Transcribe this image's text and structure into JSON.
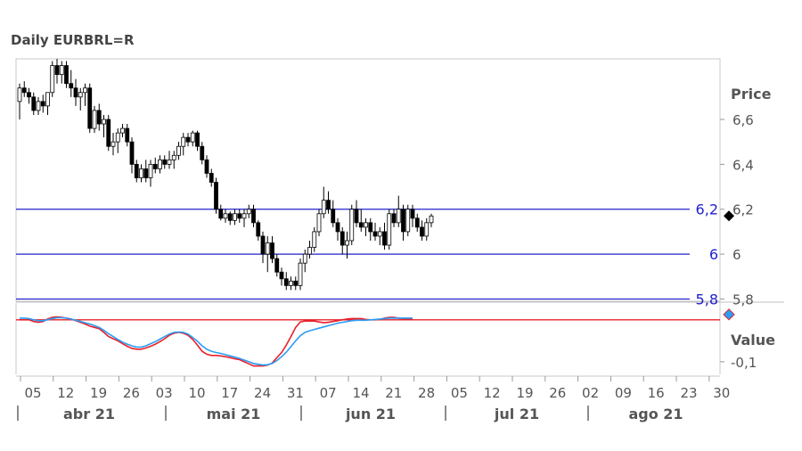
{
  "chart_data": {
    "title": "Daily EURBRL=R",
    "type": "candlestick",
    "price_panel": {
      "ylabel": "Price",
      "ylim": [
        5.79,
        6.87
      ],
      "yticks": [
        5.8,
        6.0,
        6.2,
        6.4,
        6.6
      ],
      "ytick_labels": [
        "5,8",
        "6",
        "6,2",
        "6,4",
        "6,6"
      ],
      "horizontal_lines": [
        {
          "value": 6.2,
          "label": "6,2",
          "color": "#2222cc"
        },
        {
          "value": 6.0,
          "label": "6",
          "color": "#2222cc"
        },
        {
          "value": 5.8,
          "label": "5,8",
          "color": "#2222cc"
        }
      ],
      "last_value_marker": 6.17
    },
    "indicator_panel": {
      "ylabel": "Value",
      "ytick_labels": [
        "-0,1"
      ],
      "ylim": [
        -0.13,
        0.04
      ],
      "yticks": [
        -0.1
      ],
      "zero_line": {
        "value": 0.0,
        "color": "#e8202a"
      },
      "series": [
        {
          "color": "#e8202a",
          "values": [
            0.0,
            0.0,
            0.0,
            -0.004,
            -0.006,
            -0.004,
            0.002,
            0.006,
            0.007,
            0.006,
            0.004,
            0.002,
            -0.002,
            -0.006,
            -0.01,
            -0.015,
            -0.018,
            -0.021,
            -0.03,
            -0.04,
            -0.045,
            -0.05,
            -0.057,
            -0.063,
            -0.068,
            -0.07,
            -0.07,
            -0.067,
            -0.063,
            -0.058,
            -0.052,
            -0.045,
            -0.037,
            -0.032,
            -0.03,
            -0.032,
            -0.037,
            -0.047,
            -0.06,
            -0.075,
            -0.082,
            -0.085,
            -0.085,
            -0.086,
            -0.088,
            -0.09,
            -0.093,
            -0.095,
            -0.1,
            -0.105,
            -0.11,
            -0.11,
            -0.11,
            -0.108,
            -0.103,
            -0.09,
            -0.078,
            -0.06,
            -0.04,
            -0.018,
            -0.005,
            -0.003,
            -0.003,
            -0.003,
            -0.005,
            -0.007,
            -0.006,
            -0.004,
            -0.002,
            0.0,
            0.002,
            0.003,
            0.003,
            0.003,
            0.001,
            0.0,
            0.0,
            0.001,
            0.004,
            0.006,
            0.006,
            0.004,
            0.002,
            0.002,
            0.003
          ]
        },
        {
          "color": "#2a9df4",
          "values": [
            0.004,
            0.004,
            0.003,
            0.0,
            -0.002,
            -0.002,
            0.0,
            0.003,
            0.005,
            0.005,
            0.004,
            0.002,
            -0.001,
            -0.004,
            -0.007,
            -0.01,
            -0.014,
            -0.018,
            -0.025,
            -0.033,
            -0.04,
            -0.047,
            -0.053,
            -0.058,
            -0.062,
            -0.065,
            -0.065,
            -0.062,
            -0.057,
            -0.052,
            -0.046,
            -0.04,
            -0.034,
            -0.03,
            -0.029,
            -0.03,
            -0.034,
            -0.042,
            -0.051,
            -0.062,
            -0.07,
            -0.075,
            -0.078,
            -0.08,
            -0.083,
            -0.086,
            -0.089,
            -0.092,
            -0.096,
            -0.1,
            -0.104,
            -0.106,
            -0.108,
            -0.107,
            -0.104,
            -0.097,
            -0.088,
            -0.077,
            -0.064,
            -0.05,
            -0.038,
            -0.03,
            -0.026,
            -0.023,
            -0.02,
            -0.017,
            -0.014,
            -0.011,
            -0.008,
            -0.006,
            -0.004,
            -0.002,
            -0.001,
            -0.001,
            -0.001,
            0.0,
            0.001,
            0.002,
            0.003,
            0.004,
            0.004,
            0.004,
            0.004,
            0.004,
            0.004
          ]
        }
      ],
      "last_value_marker_color": "#2a9df4"
    },
    "x_axis": {
      "day_labels": [
        "05",
        "12",
        "19",
        "26",
        "03",
        "10",
        "17",
        "24",
        "31",
        "07",
        "14",
        "21",
        "28",
        "05",
        "12",
        "19",
        "26",
        "02",
        "09",
        "16",
        "23",
        "30"
      ],
      "month_labels": [
        "abr 21",
        "mai 21",
        "jun 21",
        "jul 21",
        "ago 21"
      ]
    },
    "candles": [
      [
        6.68,
        6.76,
        6.6,
        6.74
      ],
      [
        6.74,
        6.77,
        6.7,
        6.72
      ],
      [
        6.72,
        6.74,
        6.67,
        6.7
      ],
      [
        6.7,
        6.72,
        6.62,
        6.64
      ],
      [
        6.64,
        6.7,
        6.62,
        6.68
      ],
      [
        6.68,
        6.71,
        6.63,
        6.66
      ],
      [
        6.66,
        6.72,
        6.62,
        6.72
      ],
      [
        6.72,
        6.86,
        6.7,
        6.84
      ],
      [
        6.84,
        6.87,
        6.76,
        6.8
      ],
      [
        6.8,
        6.86,
        6.76,
        6.84
      ],
      [
        6.84,
        6.86,
        6.74,
        6.76
      ],
      [
        6.76,
        6.82,
        6.7,
        6.74
      ],
      [
        6.74,
        6.78,
        6.66,
        6.7
      ],
      [
        6.7,
        6.74,
        6.64,
        6.72
      ],
      [
        6.72,
        6.76,
        6.66,
        6.74
      ],
      [
        6.74,
        6.76,
        6.54,
        6.56
      ],
      [
        6.56,
        6.66,
        6.54,
        6.64
      ],
      [
        6.64,
        6.67,
        6.55,
        6.58
      ],
      [
        6.58,
        6.62,
        6.52,
        6.6
      ],
      [
        6.6,
        6.62,
        6.46,
        6.48
      ],
      [
        6.48,
        6.54,
        6.44,
        6.5
      ],
      [
        6.5,
        6.56,
        6.45,
        6.54
      ],
      [
        6.54,
        6.58,
        6.52,
        6.56
      ],
      [
        6.56,
        6.58,
        6.48,
        6.5
      ],
      [
        6.5,
        6.52,
        6.36,
        6.4
      ],
      [
        6.4,
        6.42,
        6.32,
        6.34
      ],
      [
        6.34,
        6.4,
        6.32,
        6.38
      ],
      [
        6.38,
        6.42,
        6.32,
        6.34
      ],
      [
        6.34,
        6.42,
        6.3,
        6.4
      ],
      [
        6.4,
        6.43,
        6.36,
        6.38
      ],
      [
        6.38,
        6.44,
        6.36,
        6.42
      ],
      [
        6.42,
        6.44,
        6.38,
        6.4
      ],
      [
        6.4,
        6.46,
        6.38,
        6.42
      ],
      [
        6.42,
        6.46,
        6.38,
        6.44
      ],
      [
        6.44,
        6.5,
        6.42,
        6.48
      ],
      [
        6.48,
        6.54,
        6.44,
        6.52
      ],
      [
        6.52,
        6.54,
        6.48,
        6.5
      ],
      [
        6.5,
        6.55,
        6.48,
        6.54
      ],
      [
        6.54,
        6.55,
        6.46,
        6.48
      ],
      [
        6.48,
        6.5,
        6.4,
        6.42
      ],
      [
        6.42,
        6.44,
        6.34,
        6.36
      ],
      [
        6.36,
        6.38,
        6.3,
        6.32
      ],
      [
        6.32,
        6.34,
        6.18,
        6.2
      ],
      [
        6.2,
        6.22,
        6.15,
        6.16
      ],
      [
        6.16,
        6.2,
        6.14,
        6.18
      ],
      [
        6.18,
        6.19,
        6.13,
        6.15
      ],
      [
        6.15,
        6.2,
        6.13,
        6.18
      ],
      [
        6.18,
        6.2,
        6.14,
        6.16
      ],
      [
        6.16,
        6.2,
        6.12,
        6.18
      ],
      [
        6.18,
        6.22,
        6.16,
        6.2
      ],
      [
        6.2,
        6.22,
        6.12,
        6.14
      ],
      [
        6.14,
        6.15,
        6.06,
        6.08
      ],
      [
        6.08,
        6.1,
        5.96,
        6.0
      ],
      [
        6.0,
        6.08,
        5.92,
        6.05
      ],
      [
        6.05,
        6.08,
        5.96,
        5.98
      ],
      [
        5.98,
        6.0,
        5.9,
        5.92
      ],
      [
        5.92,
        5.94,
        5.86,
        5.89
      ],
      [
        5.89,
        5.92,
        5.84,
        5.86
      ],
      [
        5.86,
        5.9,
        5.84,
        5.88
      ],
      [
        5.88,
        5.9,
        5.84,
        5.86
      ],
      [
        5.86,
        5.98,
        5.84,
        5.96
      ],
      [
        5.96,
        6.02,
        5.92,
        6.0
      ],
      [
        6.0,
        6.06,
        5.98,
        6.03
      ],
      [
        6.03,
        6.12,
        6.01,
        6.1
      ],
      [
        6.1,
        6.2,
        6.08,
        6.18
      ],
      [
        6.18,
        6.3,
        6.16,
        6.24
      ],
      [
        6.24,
        6.28,
        6.18,
        6.2
      ],
      [
        6.2,
        6.24,
        6.12,
        6.14
      ],
      [
        6.14,
        6.16,
        6.06,
        6.1
      ],
      [
        6.1,
        6.12,
        6.0,
        6.04
      ],
      [
        6.04,
        6.1,
        5.98,
        6.06
      ],
      [
        6.06,
        6.22,
        6.04,
        6.2
      ],
      [
        6.2,
        6.24,
        6.12,
        6.14
      ],
      [
        6.14,
        6.2,
        6.1,
        6.12
      ],
      [
        6.12,
        6.16,
        6.08,
        6.14
      ],
      [
        6.14,
        6.16,
        6.06,
        6.1
      ],
      [
        6.1,
        6.14,
        6.06,
        6.08
      ],
      [
        6.08,
        6.12,
        6.04,
        6.1
      ],
      [
        6.1,
        6.14,
        6.02,
        6.04
      ],
      [
        6.04,
        6.2,
        6.02,
        6.18
      ],
      [
        6.18,
        6.2,
        6.12,
        6.14
      ],
      [
        6.14,
        6.26,
        6.12,
        6.2
      ],
      [
        6.2,
        6.22,
        6.06,
        6.1
      ],
      [
        6.1,
        6.22,
        6.08,
        6.2
      ],
      [
        6.2,
        6.22,
        6.12,
        6.16
      ],
      [
        6.16,
        6.18,
        6.1,
        6.12
      ],
      [
        6.12,
        6.15,
        6.06,
        6.08
      ],
      [
        6.08,
        6.16,
        6.06,
        6.14
      ],
      [
        6.14,
        6.18,
        6.12,
        6.17
      ]
    ]
  }
}
